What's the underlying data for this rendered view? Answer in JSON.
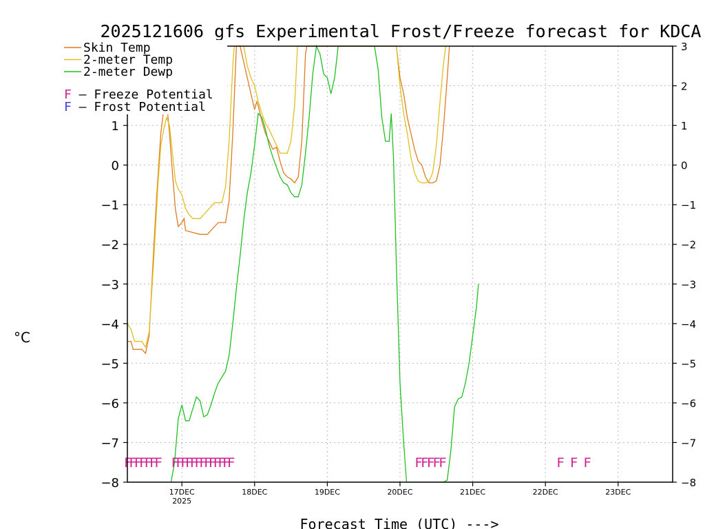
{
  "chart_data": {
    "type": "line",
    "title": "2025121606 gfs Experimental Frost/Freeze forecast for KDCA",
    "xlabel": "Forecast Time (UTC) --->",
    "ylabel": "°C",
    "ylim": [
      -8,
      3
    ],
    "y_ticks": [
      -8,
      -7,
      -6,
      -5,
      -4,
      -3,
      -2,
      -1,
      0,
      1,
      2,
      3
    ],
    "xlim": [
      0.0,
      7.5
    ],
    "x_unit": "days since 2025-12-16 06 UTC",
    "x_ticks": [
      {
        "x": 0.75,
        "label": "17DEC",
        "sublabel": "2025"
      },
      {
        "x": 1.75,
        "label": "18DEC",
        "sublabel": ""
      },
      {
        "x": 2.75,
        "label": "19DEC",
        "sublabel": ""
      },
      {
        "x": 3.75,
        "label": "20DEC",
        "sublabel": ""
      },
      {
        "x": 4.75,
        "label": "21DEC",
        "sublabel": ""
      },
      {
        "x": 5.75,
        "label": "22DEC",
        "sublabel": ""
      },
      {
        "x": 6.75,
        "label": "23DEC",
        "sublabel": ""
      }
    ],
    "grid": true,
    "legend_position": "top-left",
    "series": [
      {
        "name": "Skin Temp",
        "color": "#e07a20",
        "points": [
          [
            0.0,
            -4.45
          ],
          [
            0.05,
            -4.45
          ],
          [
            0.08,
            -4.65
          ],
          [
            0.2,
            -4.65
          ],
          [
            0.25,
            -4.75
          ],
          [
            0.3,
            -4.3
          ],
          [
            0.36,
            -2.2
          ],
          [
            0.4,
            -0.9
          ],
          [
            0.46,
            0.8
          ],
          [
            0.5,
            1.4
          ],
          [
            0.54,
            1.6
          ],
          [
            0.58,
            0.8
          ],
          [
            0.62,
            -0.2
          ],
          [
            0.66,
            -1.1
          ],
          [
            0.7,
            -1.55
          ],
          [
            0.75,
            -1.45
          ],
          [
            0.78,
            -1.35
          ],
          [
            0.8,
            -1.65
          ],
          [
            0.9,
            -1.7
          ],
          [
            1.0,
            -1.75
          ],
          [
            1.1,
            -1.75
          ],
          [
            1.15,
            -1.65
          ],
          [
            1.2,
            -1.55
          ],
          [
            1.25,
            -1.45
          ],
          [
            1.35,
            -1.45
          ],
          [
            1.4,
            -0.9
          ],
          [
            1.45,
            0.8
          ],
          [
            1.5,
            3.0
          ],
          [
            1.52,
            3.0
          ],
          [
            1.55,
            3.0
          ],
          [
            1.6,
            2.6
          ],
          [
            1.65,
            2.2
          ],
          [
            1.7,
            1.8
          ],
          [
            1.75,
            1.4
          ],
          [
            1.78,
            1.6
          ],
          [
            1.8,
            1.5
          ],
          [
            1.85,
            1.1
          ],
          [
            1.9,
            0.8
          ],
          [
            1.95,
            0.6
          ],
          [
            2.0,
            0.4
          ],
          [
            2.05,
            0.45
          ],
          [
            2.1,
            0.1
          ],
          [
            2.15,
            -0.2
          ],
          [
            2.2,
            -0.3
          ],
          [
            2.25,
            -0.35
          ],
          [
            2.3,
            -0.45
          ],
          [
            2.35,
            -0.3
          ],
          [
            2.4,
            0.6
          ],
          [
            2.45,
            2.8
          ],
          [
            2.47,
            3.0
          ],
          [
            3.7,
            3.0
          ],
          [
            3.75,
            2.2
          ],
          [
            3.8,
            1.8
          ],
          [
            3.85,
            1.2
          ],
          [
            3.9,
            0.8
          ],
          [
            3.95,
            0.4
          ],
          [
            4.0,
            0.1
          ],
          [
            4.05,
            0.0
          ],
          [
            4.1,
            -0.3
          ],
          [
            4.15,
            -0.45
          ],
          [
            4.2,
            -0.45
          ],
          [
            4.25,
            -0.4
          ],
          [
            4.3,
            0.0
          ],
          [
            4.35,
            1.0
          ],
          [
            4.4,
            2.2
          ],
          [
            4.43,
            3.0
          ]
        ]
      },
      {
        "name": "2-meter Temp",
        "color": "#e0c020",
        "points": [
          [
            0.0,
            -4.0
          ],
          [
            0.05,
            -4.15
          ],
          [
            0.1,
            -4.45
          ],
          [
            0.2,
            -4.45
          ],
          [
            0.25,
            -4.6
          ],
          [
            0.3,
            -4.2
          ],
          [
            0.36,
            -2.5
          ],
          [
            0.42,
            -0.5
          ],
          [
            0.46,
            0.5
          ],
          [
            0.5,
            0.9
          ],
          [
            0.54,
            1.2
          ],
          [
            0.58,
            1.0
          ],
          [
            0.62,
            0.3
          ],
          [
            0.66,
            -0.4
          ],
          [
            0.7,
            -0.6
          ],
          [
            0.75,
            -0.75
          ],
          [
            0.8,
            -1.1
          ],
          [
            0.85,
            -1.25
          ],
          [
            0.9,
            -1.35
          ],
          [
            1.0,
            -1.35
          ],
          [
            1.05,
            -1.25
          ],
          [
            1.15,
            -1.05
          ],
          [
            1.2,
            -0.95
          ],
          [
            1.3,
            -0.95
          ],
          [
            1.35,
            -0.55
          ],
          [
            1.4,
            0.6
          ],
          [
            1.45,
            2.5
          ],
          [
            1.47,
            3.0
          ],
          [
            1.55,
            3.0
          ],
          [
            1.6,
            3.0
          ],
          [
            1.65,
            2.5
          ],
          [
            1.7,
            2.2
          ],
          [
            1.75,
            2.0
          ],
          [
            1.8,
            1.6
          ],
          [
            1.85,
            1.3
          ],
          [
            1.9,
            1.05
          ],
          [
            1.95,
            0.9
          ],
          [
            2.0,
            0.7
          ],
          [
            2.05,
            0.5
          ],
          [
            2.1,
            0.3
          ],
          [
            2.15,
            0.3
          ],
          [
            2.2,
            0.3
          ],
          [
            2.25,
            0.6
          ],
          [
            2.3,
            1.5
          ],
          [
            2.34,
            3.0
          ],
          [
            3.7,
            3.0
          ],
          [
            3.75,
            2.0
          ],
          [
            3.8,
            1.3
          ],
          [
            3.85,
            0.8
          ],
          [
            3.9,
            0.2
          ],
          [
            3.95,
            -0.2
          ],
          [
            4.0,
            -0.4
          ],
          [
            4.05,
            -0.45
          ],
          [
            4.1,
            -0.45
          ],
          [
            4.15,
            -0.4
          ],
          [
            4.2,
            -0.2
          ],
          [
            4.25,
            0.5
          ],
          [
            4.3,
            1.6
          ],
          [
            4.35,
            2.6
          ],
          [
            4.38,
            3.0
          ]
        ]
      },
      {
        "name": "2-meter Dewp",
        "color": "#20c020",
        "points": [
          [
            0.6,
            -8.0
          ],
          [
            0.65,
            -7.5
          ],
          [
            0.7,
            -6.4
          ],
          [
            0.75,
            -6.05
          ],
          [
            0.8,
            -6.45
          ],
          [
            0.85,
            -6.45
          ],
          [
            0.9,
            -6.15
          ],
          [
            0.95,
            -5.85
          ],
          [
            1.0,
            -5.95
          ],
          [
            1.05,
            -6.35
          ],
          [
            1.1,
            -6.3
          ],
          [
            1.15,
            -6.05
          ],
          [
            1.2,
            -5.75
          ],
          [
            1.25,
            -5.5
          ],
          [
            1.3,
            -5.35
          ],
          [
            1.35,
            -5.2
          ],
          [
            1.4,
            -4.8
          ],
          [
            1.45,
            -4.0
          ],
          [
            1.5,
            -3.1
          ],
          [
            1.55,
            -2.3
          ],
          [
            1.6,
            -1.4
          ],
          [
            1.65,
            -0.7
          ],
          [
            1.7,
            -0.2
          ],
          [
            1.75,
            0.5
          ],
          [
            1.8,
            1.3
          ],
          [
            1.85,
            1.2
          ],
          [
            1.9,
            0.9
          ],
          [
            1.95,
            0.5
          ],
          [
            2.0,
            0.2
          ],
          [
            2.05,
            -0.05
          ],
          [
            2.1,
            -0.3
          ],
          [
            2.15,
            -0.45
          ],
          [
            2.2,
            -0.5
          ],
          [
            2.25,
            -0.7
          ],
          [
            2.3,
            -0.8
          ],
          [
            2.35,
            -0.8
          ],
          [
            2.4,
            -0.5
          ],
          [
            2.45,
            0.3
          ],
          [
            2.5,
            1.2
          ],
          [
            2.55,
            2.3
          ],
          [
            2.6,
            3.0
          ],
          [
            2.65,
            2.8
          ],
          [
            2.7,
            2.3
          ],
          [
            2.75,
            2.2
          ],
          [
            2.8,
            1.8
          ],
          [
            2.85,
            2.2
          ],
          [
            2.9,
            3.0
          ],
          [
            3.4,
            3.0
          ],
          [
            3.45,
            2.4
          ],
          [
            3.5,
            1.2
          ],
          [
            3.55,
            0.6
          ],
          [
            3.6,
            0.6
          ],
          [
            3.63,
            1.3
          ],
          [
            3.66,
            0.2
          ],
          [
            3.7,
            -2.5
          ],
          [
            3.75,
            -5.5
          ],
          [
            3.8,
            -7.0
          ],
          [
            3.84,
            -8.0
          ],
          [
            4.35,
            -8.0
          ],
          [
            4.4,
            -7.95
          ],
          [
            4.45,
            -7.2
          ],
          [
            4.5,
            -6.1
          ],
          [
            4.55,
            -5.9
          ],
          [
            4.6,
            -5.85
          ],
          [
            4.65,
            -5.5
          ],
          [
            4.7,
            -5.0
          ],
          [
            4.75,
            -4.3
          ],
          [
            4.8,
            -3.6
          ],
          [
            4.83,
            -3.0
          ]
        ]
      }
    ],
    "freeze_marks": [
      {
        "x_start": 0.0,
        "x_end": 0.42,
        "count": 7
      },
      {
        "x_start": 0.65,
        "x_end": 1.42,
        "count": 13
      },
      {
        "x_start": 4.0,
        "x_end": 4.33,
        "count": 5
      },
      {
        "x_start": 5.95,
        "x_end": 6.32,
        "count": 3
      }
    ],
    "freeze_mark_y": -7.5,
    "legend": {
      "entries": [
        "Skin Temp",
        "2-meter Temp",
        "2-meter Dewp"
      ],
      "potential_entries": [
        {
          "symbol": "F",
          "text": " – Freeze Potential",
          "color": "#d02090"
        },
        {
          "symbol": "F",
          "text": " – Frost Potential",
          "color": "#4040e0"
        }
      ]
    }
  }
}
